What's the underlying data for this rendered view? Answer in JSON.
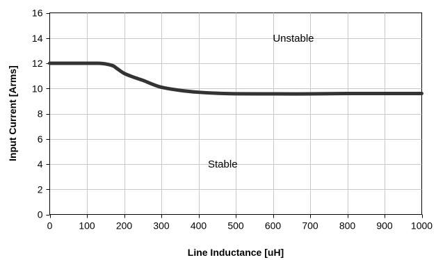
{
  "chart_data": {
    "type": "line",
    "xlabel": "Line Inductance [uH]",
    "ylabel": "Input Current [Arms]",
    "xlim": [
      0,
      1000
    ],
    "ylim": [
      0,
      16
    ],
    "x_ticks": [
      0,
      100,
      200,
      300,
      400,
      500,
      600,
      700,
      800,
      900,
      1000
    ],
    "y_ticks": [
      0,
      2,
      4,
      6,
      8,
      10,
      12,
      14,
      16
    ],
    "grid": true,
    "series": [
      {
        "color": "#333333",
        "x": [
          0,
          50,
          100,
          130,
          150,
          170,
          180,
          200,
          225,
          250,
          275,
          300,
          350,
          400,
          450,
          500,
          600,
          700,
          800,
          900,
          1000
        ],
        "y": [
          12.0,
          12.0,
          12.0,
          12.0,
          11.95,
          11.8,
          11.6,
          11.2,
          10.9,
          10.65,
          10.35,
          10.1,
          9.85,
          9.7,
          9.62,
          9.58,
          9.57,
          9.57,
          9.6,
          9.6,
          9.6
        ]
      }
    ],
    "annotations": [
      {
        "text": "Unstable",
        "x": 655,
        "y": 14
      },
      {
        "text": "Stable",
        "x": 465,
        "y": 4
      }
    ]
  }
}
